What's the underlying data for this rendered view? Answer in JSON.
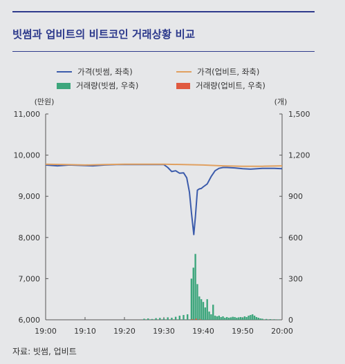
{
  "title": "빗썸과 업비트의 비트코인 거래상황 비교",
  "source": "자료: 빗썸, 업비트",
  "colors": {
    "price_bithumb": "#3b5bab",
    "price_upbit": "#e0a060",
    "volume_bithumb": "#3da67c",
    "volume_upbit": "#e05a40",
    "accent": "#2d3a8c"
  },
  "chart_data": {
    "type": "line",
    "legend": [
      {
        "label": "가격(빗썸, 좌축)",
        "kind": "line",
        "color": "#3b5bab"
      },
      {
        "label": "가격(업비트, 좌축)",
        "kind": "line",
        "color": "#e0a060"
      },
      {
        "label": "거래량(빗썸, 우축)",
        "kind": "bar",
        "color": "#3da67c"
      },
      {
        "label": "거래량(업비트, 우축)",
        "kind": "bar",
        "color": "#e05a40"
      }
    ],
    "y_left_unit": "(만원)",
    "y_right_unit": "(개)",
    "ylim_left": [
      6000,
      11000
    ],
    "ylim_right": [
      0,
      1500
    ],
    "y_left_ticks": [
      "6,000",
      "7,000",
      "8,000",
      "9,000",
      "10,000",
      "11,000"
    ],
    "y_right_ticks": [
      "0",
      "300",
      "600",
      "900",
      "1,200",
      "1,500"
    ],
    "x_ticks": [
      "19:00",
      "19:10",
      "19:20",
      "19:30",
      "19:40",
      "19:50",
      "20:00"
    ],
    "xlim_minutes": [
      0,
      60
    ],
    "series": [
      {
        "name": "가격(빗썸, 좌축)",
        "axis": "left",
        "kind": "line",
        "x": [
          0,
          3,
          6,
          9,
          12,
          15,
          18,
          21,
          24,
          27,
          30,
          31,
          32,
          33,
          34,
          35,
          35.8,
          36.5,
          37,
          37.6,
          38,
          38.5,
          39,
          39.5,
          40,
          41,
          42,
          43,
          44,
          45,
          46,
          48,
          50,
          52,
          55,
          58,
          60
        ],
        "values": [
          9760,
          9740,
          9760,
          9750,
          9740,
          9760,
          9770,
          9770,
          9770,
          9770,
          9770,
          9700,
          9600,
          9620,
          9560,
          9570,
          9450,
          9100,
          8600,
          8070,
          8500,
          9150,
          9180,
          9190,
          9230,
          9300,
          9480,
          9620,
          9680,
          9700,
          9700,
          9690,
          9670,
          9660,
          9680,
          9680,
          9670
        ]
      },
      {
        "name": "가격(업비트, 좌축)",
        "axis": "left",
        "kind": "line",
        "x": [
          0,
          5,
          10,
          15,
          20,
          25,
          30,
          35,
          40,
          45,
          50,
          55,
          60
        ],
        "values": [
          9780,
          9770,
          9760,
          9770,
          9780,
          9780,
          9780,
          9770,
          9760,
          9740,
          9730,
          9730,
          9740
        ]
      },
      {
        "name": "거래량(빗썸, 우축)",
        "axis": "right",
        "kind": "bar",
        "x": [
          25,
          26,
          27,
          28,
          29,
          30,
          31,
          32,
          33,
          34,
          35,
          36,
          37,
          37.5,
          38,
          38.5,
          39,
          39.5,
          40,
          40.5,
          41,
          41.5,
          42,
          42.5,
          43,
          43.5,
          44,
          44.5,
          45,
          45.5,
          46,
          46.5,
          47,
          47.5,
          48,
          48.5,
          49,
          49.5,
          50,
          50.5,
          51,
          51.5,
          52,
          52.5,
          53,
          53.5,
          54,
          54.5,
          55,
          56,
          57,
          58,
          59
        ],
        "values": [
          8,
          10,
          6,
          12,
          14,
          10,
          18,
          15,
          22,
          30,
          35,
          40,
          300,
          380,
          480,
          260,
          170,
          150,
          130,
          90,
          150,
          60,
          40,
          110,
          30,
          25,
          30,
          20,
          25,
          15,
          20,
          15,
          18,
          22,
          20,
          15,
          18,
          20,
          15,
          25,
          20,
          30,
          35,
          40,
          30,
          20,
          15,
          10,
          8,
          6,
          5,
          4,
          3
        ]
      },
      {
        "name": "거래량(업비트, 우축)",
        "axis": "right",
        "kind": "bar",
        "x": [
          37.2,
          38.2,
          39.2
        ],
        "values": [
          5,
          8,
          4
        ]
      }
    ]
  }
}
